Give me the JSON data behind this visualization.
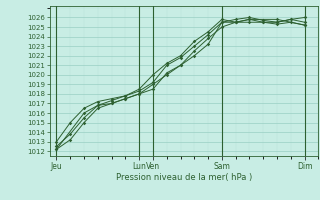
{
  "title": "",
  "xlabel": "Pression niveau de la mer( hPa )",
  "bg_color": "#c8ede4",
  "grid_color_major": "#9ad0c4",
  "grid_color_minor": "#b8e0d8",
  "line_color": "#2d6030",
  "vline_color": "#2d6030",
  "ylim": [
    1011.5,
    1027.2
  ],
  "yticks": [
    1012,
    1013,
    1014,
    1015,
    1016,
    1017,
    1018,
    1019,
    1020,
    1021,
    1022,
    1023,
    1024,
    1025,
    1026
  ],
  "day_labels": [
    "Jeu",
    "Lun",
    "Ven",
    "Sam",
    "Dim"
  ],
  "day_positions": [
    0,
    6,
    7,
    12,
    18
  ],
  "xlim": [
    -0.5,
    19.0
  ],
  "lines": [
    {
      "x": [
        0,
        1,
        2,
        3,
        4,
        5,
        6,
        7,
        8,
        9,
        10,
        11,
        12,
        13,
        14,
        15,
        16,
        17,
        18
      ],
      "y": [
        1012.2,
        1013.2,
        1015.0,
        1016.5,
        1017.0,
        1017.5,
        1018.0,
        1018.5,
        1020.2,
        1021.0,
        1022.0,
        1023.2,
        1025.5,
        1025.8,
        1026.0,
        1025.7,
        1025.5,
        1025.8,
        1026.0
      ]
    },
    {
      "x": [
        0,
        1,
        2,
        3,
        4,
        5,
        6,
        7,
        8,
        9,
        10,
        11,
        12,
        13,
        14,
        15,
        16,
        17,
        18
      ],
      "y": [
        1012.5,
        1013.8,
        1015.5,
        1016.8,
        1017.3,
        1017.8,
        1018.3,
        1019.2,
        1021.0,
        1021.8,
        1023.0,
        1024.2,
        1025.5,
        1025.5,
        1025.8,
        1025.5,
        1025.3,
        1025.5,
        1025.2
      ]
    },
    {
      "x": [
        0,
        1,
        2,
        3,
        4,
        5,
        6,
        7,
        8,
        9,
        10,
        11,
        12,
        13,
        14,
        15,
        16,
        17,
        18
      ],
      "y": [
        1013.0,
        1015.0,
        1016.5,
        1017.2,
        1017.5,
        1017.8,
        1018.5,
        1020.0,
        1021.2,
        1022.0,
        1023.5,
        1024.5,
        1025.8,
        1025.5,
        1025.5,
        1025.5,
        1025.5,
        1025.8,
        1025.5
      ]
    },
    {
      "x": [
        0,
        2,
        3,
        4,
        5,
        6,
        7,
        8,
        9,
        10,
        11,
        12,
        13,
        14,
        16,
        18
      ],
      "y": [
        1012.2,
        1016.0,
        1016.8,
        1017.0,
        1017.5,
        1018.0,
        1019.0,
        1020.0,
        1021.0,
        1022.5,
        1023.8,
        1025.0,
        1025.5,
        1025.8,
        1025.8,
        1025.2
      ]
    }
  ]
}
